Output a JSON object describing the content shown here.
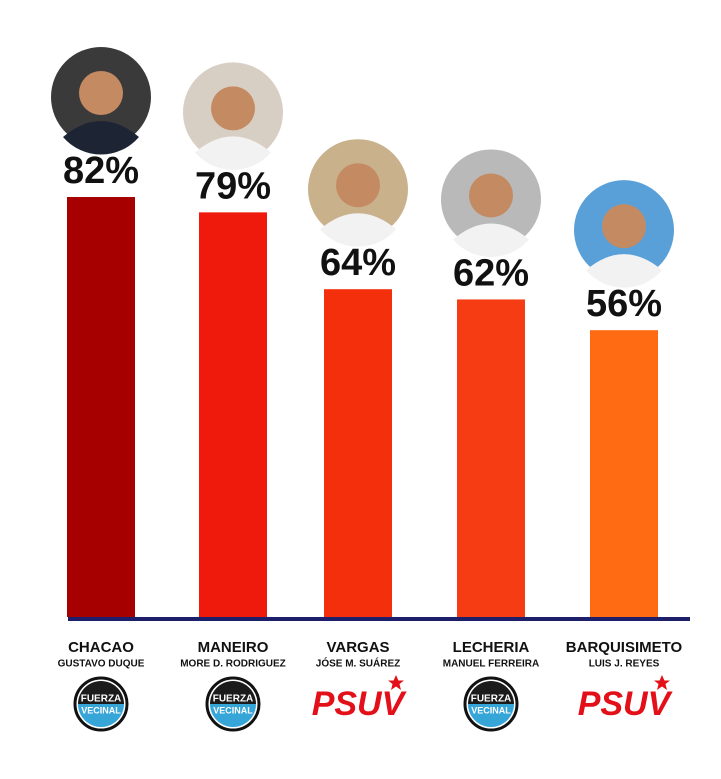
{
  "chart_data": {
    "type": "bar",
    "categories": [
      "CHACAO",
      "MANEIRO",
      "VARGAS",
      "LECHERIA",
      "BARQUISIMETO"
    ],
    "candidates": [
      "GUSTAVO DUQUE",
      "MORE D. RODRIGUEZ",
      "JÓSE M. SUÁREZ",
      "MANUEL FERREIRA",
      "LUIS J. REYES"
    ],
    "parties": [
      [
        "FUERZA",
        "VECINAL"
      ],
      [
        "FUERZA",
        "VECINAL"
      ],
      [
        "PSUV"
      ],
      [
        "FUERZA",
        "VECINAL"
      ],
      [
        "PSUV"
      ]
    ],
    "values": [
      82,
      79,
      64,
      62,
      56
    ],
    "value_labels": [
      "82%",
      "79%",
      "64%",
      "62%",
      "56%"
    ],
    "colors": [
      "#a60000",
      "#ef1a0c",
      "#f4300c",
      "#f53c12",
      "#ff6b12"
    ],
    "baseline_color": "#1d1f6b"
  }
}
